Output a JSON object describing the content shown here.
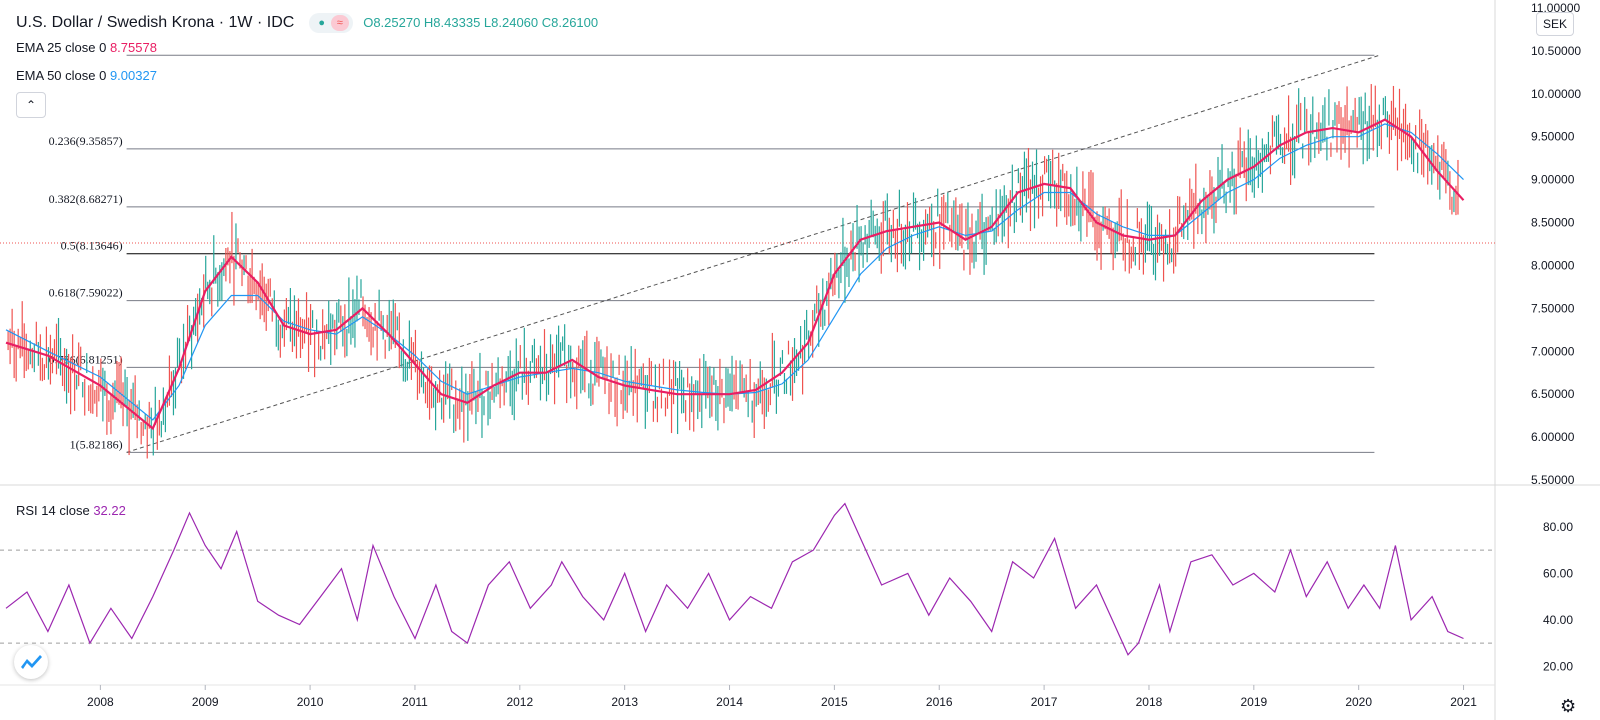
{
  "header": {
    "symbol_title": "U.S. Dollar / Swedish Krona · 1W · IDC",
    "ohlc": "O8.25270 H8.43335 L8.24060 C8.26100",
    "pill_icons": [
      "dot-icon",
      "wave-icon"
    ]
  },
  "legend": {
    "ema25_label": "EMA 25 close 0",
    "ema25_value": "8.75578",
    "ema50_label": "EMA 50 close 0",
    "ema50_value": "9.00327",
    "rsi_label": "RSI 14 close",
    "rsi_value": "32.22"
  },
  "currency_button": "SEK",
  "colors": {
    "up": "#26a69a",
    "down": "#ef5350",
    "ema25": "#e91e63",
    "ema50": "#2196f3",
    "rsi": "#9c27b0",
    "price_line": "#ef5350"
  },
  "chart_data": [
    {
      "type": "line",
      "title": "U.S. Dollar / Swedish Krona · 1W · IDC",
      "price_axis": {
        "ticks": [
          "5.50000",
          "6.00000",
          "6.50000",
          "7.00000",
          "7.50000",
          "8.00000",
          "8.50000",
          "9.00000",
          "9.50000",
          "10.00000",
          "10.50000",
          "11.00000"
        ],
        "ylim": [
          5.5,
          11.0
        ]
      },
      "time_axis": {
        "ticks": [
          "2008",
          "2009",
          "2010",
          "2011",
          "2012",
          "2013",
          "2014",
          "2015",
          "2016",
          "2017",
          "2018",
          "2019",
          "2020",
          "2021"
        ],
        "xlim": [
          2007.1,
          2021.3
        ]
      },
      "last_price": 8.261,
      "fibonacci": {
        "levels": [
          {
            "label": "0.236(9.35857)",
            "value": 9.35857
          },
          {
            "label": "0.382(8.68271)",
            "value": 8.68271
          },
          {
            "label": "0.5(8.13646)",
            "value": 8.13646
          },
          {
            "label": "0.618(7.59022)",
            "value": 7.59022
          },
          {
            "label": "0.786(6.81251)",
            "value": 6.81251
          },
          {
            "label": "1(5.82186)",
            "value": 5.82186
          }
        ],
        "top_value": 10.45,
        "trend_from": [
          2008.25,
          5.82186
        ],
        "trend_to": [
          2020.2,
          10.45
        ],
        "range_x": [
          2008.25,
          2020.15
        ]
      },
      "series": [
        {
          "name": "EMA 25 close 0",
          "x": [
            2007.1,
            2007.5,
            2008.0,
            2008.3,
            2008.5,
            2008.75,
            2009.0,
            2009.25,
            2009.5,
            2009.75,
            2010.0,
            2010.25,
            2010.5,
            2010.75,
            2011.0,
            2011.25,
            2011.5,
            2011.75,
            2012.0,
            2012.25,
            2012.5,
            2012.75,
            2013.0,
            2013.25,
            2013.5,
            2013.75,
            2014.0,
            2014.25,
            2014.5,
            2014.75,
            2015.0,
            2015.25,
            2015.5,
            2015.75,
            2016.0,
            2016.25,
            2016.5,
            2016.75,
            2017.0,
            2017.25,
            2017.5,
            2017.75,
            2018.0,
            2018.25,
            2018.5,
            2018.75,
            2019.0,
            2019.25,
            2019.5,
            2019.75,
            2020.0,
            2020.25,
            2020.5,
            2020.75,
            2021.0
          ],
          "y": [
            7.1,
            6.95,
            6.6,
            6.3,
            6.1,
            6.8,
            7.7,
            8.1,
            7.8,
            7.3,
            7.2,
            7.25,
            7.5,
            7.2,
            6.85,
            6.5,
            6.4,
            6.6,
            6.75,
            6.75,
            6.9,
            6.7,
            6.6,
            6.55,
            6.5,
            6.5,
            6.5,
            6.55,
            6.75,
            7.1,
            7.9,
            8.3,
            8.4,
            8.45,
            8.5,
            8.3,
            8.45,
            8.85,
            8.95,
            8.9,
            8.5,
            8.35,
            8.3,
            8.35,
            8.75,
            9.0,
            9.15,
            9.4,
            9.55,
            9.6,
            9.55,
            9.7,
            9.5,
            9.1,
            8.76
          ]
        },
        {
          "name": "EMA 50 close 0",
          "x": [
            2007.1,
            2007.5,
            2008.0,
            2008.3,
            2008.5,
            2008.75,
            2009.0,
            2009.25,
            2009.5,
            2009.75,
            2010.0,
            2010.25,
            2010.5,
            2010.75,
            2011.0,
            2011.25,
            2011.5,
            2011.75,
            2012.0,
            2012.25,
            2012.5,
            2012.75,
            2013.0,
            2013.25,
            2013.5,
            2013.75,
            2014.0,
            2014.25,
            2014.5,
            2014.75,
            2015.0,
            2015.25,
            2015.5,
            2015.75,
            2016.0,
            2016.25,
            2016.5,
            2016.75,
            2017.0,
            2017.25,
            2017.5,
            2017.75,
            2018.0,
            2018.25,
            2018.5,
            2018.75,
            2019.0,
            2019.25,
            2019.5,
            2019.75,
            2020.0,
            2020.25,
            2020.5,
            2020.75,
            2021.0
          ],
          "y": [
            7.25,
            7.0,
            6.7,
            6.4,
            6.2,
            6.6,
            7.3,
            7.65,
            7.65,
            7.35,
            7.25,
            7.2,
            7.4,
            7.2,
            6.95,
            6.65,
            6.5,
            6.6,
            6.7,
            6.75,
            6.8,
            6.75,
            6.65,
            6.6,
            6.55,
            6.52,
            6.5,
            6.52,
            6.62,
            6.9,
            7.4,
            7.9,
            8.2,
            8.35,
            8.45,
            8.35,
            8.4,
            8.65,
            8.85,
            8.85,
            8.6,
            8.45,
            8.35,
            8.35,
            8.6,
            8.85,
            9.0,
            9.25,
            9.4,
            9.5,
            9.5,
            9.65,
            9.55,
            9.3,
            9.0
          ]
        }
      ]
    },
    {
      "type": "line",
      "title": "RSI 14 close",
      "y_axis": {
        "ticks": [
          "20.00",
          "40.00",
          "60.00",
          "80.00"
        ],
        "ylim": [
          15,
          95
        ]
      },
      "bands": [
        30,
        70
      ],
      "series": [
        {
          "name": "RSI 14 close",
          "x": [
            2007.1,
            2007.3,
            2007.5,
            2007.7,
            2007.9,
            2008.1,
            2008.3,
            2008.5,
            2008.7,
            2008.85,
            2009.0,
            2009.15,
            2009.3,
            2009.5,
            2009.7,
            2009.9,
            2010.1,
            2010.3,
            2010.45,
            2010.6,
            2010.8,
            2011.0,
            2011.2,
            2011.35,
            2011.5,
            2011.7,
            2011.9,
            2012.1,
            2012.3,
            2012.4,
            2012.6,
            2012.8,
            2013.0,
            2013.2,
            2013.4,
            2013.6,
            2013.8,
            2014.0,
            2014.2,
            2014.4,
            2014.6,
            2014.8,
            2015.0,
            2015.1,
            2015.25,
            2015.45,
            2015.7,
            2015.9,
            2016.1,
            2016.3,
            2016.5,
            2016.7,
            2016.9,
            2017.1,
            2017.3,
            2017.5,
            2017.65,
            2017.8,
            2017.9,
            2018.1,
            2018.2,
            2018.4,
            2018.6,
            2018.8,
            2019.0,
            2019.2,
            2019.35,
            2019.5,
            2019.7,
            2019.9,
            2020.05,
            2020.2,
            2020.35,
            2020.5,
            2020.7,
            2020.85,
            2021.0
          ],
          "y": [
            45,
            52,
            35,
            55,
            30,
            45,
            32,
            50,
            70,
            86,
            72,
            62,
            78,
            48,
            42,
            38,
            50,
            62,
            40,
            72,
            50,
            32,
            55,
            35,
            30,
            55,
            65,
            45,
            55,
            65,
            50,
            40,
            60,
            35,
            55,
            45,
            60,
            40,
            50,
            45,
            65,
            70,
            85,
            90,
            75,
            55,
            60,
            42,
            58,
            48,
            35,
            65,
            58,
            75,
            45,
            55,
            40,
            25,
            30,
            55,
            35,
            65,
            68,
            55,
            60,
            52,
            70,
            50,
            65,
            45,
            55,
            45,
            72,
            40,
            50,
            35,
            32
          ]
        }
      ]
    }
  ]
}
